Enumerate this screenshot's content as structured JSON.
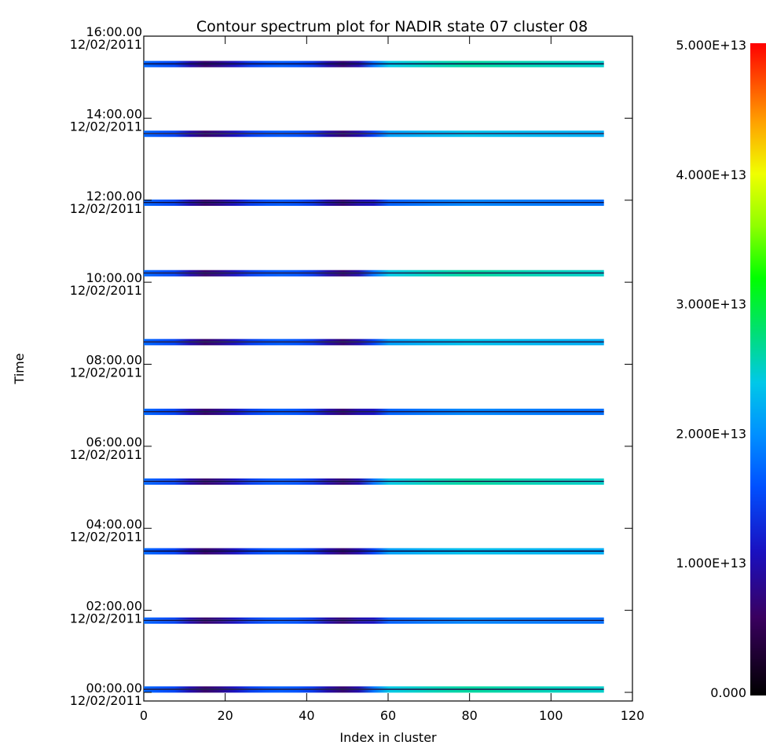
{
  "chart_data": {
    "type": "heatmap",
    "title": "Contour spectrum plot for NADIR state 07 cluster 08",
    "xlabel": "Index in cluster",
    "ylabel": "Time",
    "xlim": [
      0,
      120
    ],
    "xticks": [
      0,
      20,
      40,
      60,
      80,
      100,
      120
    ],
    "xtick_labels": [
      "0",
      "20",
      "40",
      "60",
      "80",
      "100",
      "120"
    ],
    "y_tick_times": [
      0,
      2,
      4,
      6,
      8,
      10,
      12,
      14,
      16
    ],
    "yticks": [
      {
        "time": "00:00.00",
        "date": "12/02/2011"
      },
      {
        "time": "02:00.00",
        "date": "12/02/2011"
      },
      {
        "time": "04:00.00",
        "date": "12/02/2011"
      },
      {
        "time": "06:00.00",
        "date": "12/02/2011"
      },
      {
        "time": "08:00.00",
        "date": "12/02/2011"
      },
      {
        "time": "10:00.00",
        "date": "12/02/2011"
      },
      {
        "time": "12:00.00",
        "date": "12/02/2011"
      },
      {
        "time": "14:00.00",
        "date": "12/02/2011"
      },
      {
        "time": "16:00.00",
        "date": "12/02/2011"
      }
    ],
    "ylim_hours": [
      0,
      16
    ],
    "x_data_range": [
      0,
      113
    ],
    "orbit_times_hours": [
      0.05,
      1.73,
      3.42,
      5.12,
      6.82,
      8.52,
      10.2,
      11.92,
      13.6,
      15.3
    ],
    "intensity_profile": {
      "x": [
        0,
        8,
        14,
        20,
        28,
        36,
        42,
        48,
        54,
        60,
        70,
        80,
        90,
        100,
        113
      ],
      "relative": [
        0.35,
        0.3,
        0.12,
        0.18,
        0.32,
        0.34,
        0.28,
        0.12,
        0.22,
        0.42,
        0.45,
        0.47,
        0.46,
        0.45,
        0.44
      ]
    },
    "colorbar": {
      "range": [
        0,
        50000000000000.0
      ],
      "tick_values": [
        0,
        10000000000000.0,
        20000000000000.0,
        30000000000000.0,
        40000000000000.0,
        50000000000000.0
      ],
      "tick_labels": [
        "0.000",
        "1.000E+13",
        "2.000E+13",
        "3.000E+13",
        "4.000E+13",
        "5.000E+13"
      ],
      "colormap": "rainbow"
    }
  }
}
